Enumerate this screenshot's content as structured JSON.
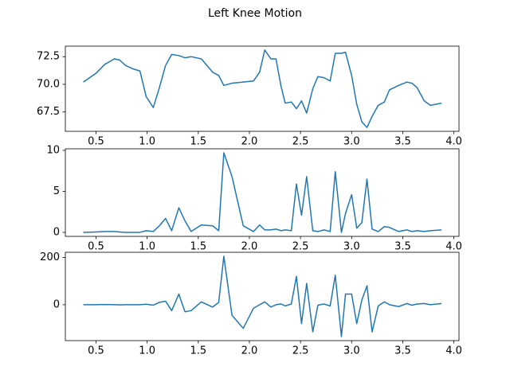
{
  "title": "Left Knee Motion",
  "chart_data": [
    {
      "type": "line",
      "color": "#1f77b4",
      "x": [
        0.376,
        0.5,
        0.585,
        0.68,
        0.73,
        0.79,
        0.86,
        0.93,
        0.99,
        1.06,
        1.12,
        1.18,
        1.24,
        1.31,
        1.37,
        1.43,
        1.53,
        1.64,
        1.7,
        1.75,
        1.83,
        1.94,
        2.04,
        2.1,
        2.15,
        2.21,
        2.26,
        2.31,
        2.35,
        2.41,
        2.46,
        2.51,
        2.56,
        2.62,
        2.67,
        2.73,
        2.79,
        2.84,
        2.9,
        2.94,
        3.0,
        3.05,
        3.1,
        3.15,
        3.2,
        3.26,
        3.32,
        3.37,
        3.46,
        3.54,
        3.59,
        3.64,
        3.71,
        3.77,
        3.88
      ],
      "values": [
        70.2,
        71.0,
        71.8,
        72.3,
        72.2,
        71.7,
        71.4,
        71.2,
        68.9,
        67.9,
        69.7,
        71.7,
        72.7,
        72.6,
        72.4,
        72.5,
        72.3,
        71.1,
        70.8,
        69.9,
        70.1,
        70.2,
        70.3,
        71.1,
        73.1,
        72.3,
        72.3,
        69.8,
        68.3,
        68.4,
        67.8,
        68.5,
        67.4,
        69.6,
        70.7,
        70.6,
        70.3,
        72.8,
        72.8,
        72.9,
        70.8,
        68.2,
        66.6,
        66.1,
        67.1,
        68.1,
        68.4,
        69.5,
        69.9,
        70.2,
        70.1,
        69.7,
        68.5,
        68.1,
        68.3
      ],
      "xlim": [
        0.2,
        4.05
      ],
      "xticks": [
        {
          "value": 0.5,
          "label": "0.5"
        },
        {
          "value": 1.0,
          "label": "1.0"
        },
        {
          "value": 1.5,
          "label": "1.5"
        },
        {
          "value": 2.0,
          "label": "2.0"
        },
        {
          "value": 2.5,
          "label": "2.5"
        },
        {
          "value": 3.0,
          "label": "3.0"
        },
        {
          "value": 3.5,
          "label": "3.5"
        },
        {
          "value": 4.0,
          "label": "4.0"
        }
      ],
      "ylim": [
        65.75,
        73.45
      ],
      "yticks": [
        67.5,
        {
          "value": 70,
          "label": "70.0"
        },
        72.5
      ]
    },
    {
      "type": "line",
      "color": "#1f77b4",
      "x": [
        0.376,
        0.5,
        0.585,
        0.68,
        0.73,
        0.79,
        0.86,
        0.93,
        0.99,
        1.06,
        1.12,
        1.18,
        1.24,
        1.31,
        1.37,
        1.43,
        1.53,
        1.64,
        1.7,
        1.75,
        1.83,
        1.94,
        2.04,
        2.1,
        2.15,
        2.21,
        2.26,
        2.31,
        2.35,
        2.41,
        2.46,
        2.51,
        2.56,
        2.62,
        2.67,
        2.73,
        2.79,
        2.84,
        2.9,
        2.94,
        3.0,
        3.05,
        3.1,
        3.15,
        3.2,
        3.26,
        3.32,
        3.37,
        3.46,
        3.54,
        3.59,
        3.64,
        3.71,
        3.77,
        3.88
      ],
      "values": [
        0.0,
        0.05,
        0.1,
        0.1,
        0.05,
        0.0,
        0.0,
        0.0,
        0.2,
        0.1,
        0.8,
        1.7,
        0.2,
        3.0,
        1.4,
        0.1,
        0.9,
        0.8,
        0.2,
        9.7,
        6.8,
        0.8,
        0.1,
        0.9,
        0.3,
        0.3,
        0.4,
        0.2,
        0.3,
        0.2,
        5.9,
        2.1,
        6.8,
        0.2,
        0.1,
        0.3,
        0.1,
        7.4,
        0.0,
        2.3,
        4.6,
        0.5,
        1.2,
        6.5,
        0.4,
        0.1,
        0.7,
        0.6,
        0.1,
        0.3,
        0.1,
        0.2,
        0.1,
        0.2,
        0.3
      ],
      "xlim": [
        0.2,
        4.05
      ],
      "xticks": [
        {
          "value": 0.5,
          "label": "0.5"
        },
        {
          "value": 1.0,
          "label": "1.0"
        },
        {
          "value": 1.5,
          "label": "1.5"
        },
        {
          "value": 2.0,
          "label": "2.0"
        },
        {
          "value": 2.5,
          "label": "2.5"
        },
        {
          "value": 3.0,
          "label": "3.0"
        },
        {
          "value": 3.5,
          "label": "3.5"
        },
        {
          "value": 4.0,
          "label": "4.0"
        }
      ],
      "ylim": [
        -0.49,
        10.19
      ],
      "yticks": [
        0,
        5,
        10
      ]
    },
    {
      "type": "line",
      "color": "#1f77b4",
      "x": [
        0.376,
        0.5,
        0.585,
        0.68,
        0.73,
        0.79,
        0.86,
        0.93,
        0.99,
        1.06,
        1.12,
        1.18,
        1.24,
        1.31,
        1.37,
        1.43,
        1.53,
        1.64,
        1.7,
        1.75,
        1.83,
        1.94,
        2.04,
        2.1,
        2.15,
        2.21,
        2.26,
        2.31,
        2.35,
        2.41,
        2.46,
        2.51,
        2.56,
        2.62,
        2.67,
        2.73,
        2.79,
        2.84,
        2.9,
        2.94,
        3.0,
        3.05,
        3.1,
        3.15,
        3.2,
        3.26,
        3.32,
        3.37,
        3.46,
        3.54,
        3.59,
        3.64,
        3.71,
        3.77,
        3.88
      ],
      "values": [
        0,
        0,
        1,
        0,
        -1,
        0,
        0,
        0,
        2,
        -2,
        10,
        15,
        -25,
        45,
        -30,
        -25,
        12,
        -10,
        10,
        205,
        -45,
        -100,
        -15,
        0,
        12,
        -10,
        0,
        3,
        -5,
        3,
        120,
        -80,
        90,
        -115,
        -2,
        3,
        -5,
        125,
        -135,
        45,
        45,
        -80,
        20,
        80,
        -115,
        -5,
        12,
        0,
        -8,
        5,
        -2,
        3,
        5,
        0,
        5
      ],
      "xlim": [
        0.2,
        4.05
      ],
      "xticks": [
        {
          "value": 0.5,
          "label": "0.5"
        },
        {
          "value": 1.0,
          "label": "1.0"
        },
        {
          "value": 1.5,
          "label": "1.5"
        },
        {
          "value": 2.0,
          "label": "2.0"
        },
        {
          "value": 2.5,
          "label": "2.5"
        },
        {
          "value": 3.0,
          "label": "3.0"
        },
        {
          "value": 3.5,
          "label": "3.5"
        },
        {
          "value": 4.0,
          "label": "4.0"
        }
      ],
      "ylim": [
        -152,
        222
      ],
      "yticks": [
        0,
        200
      ]
    }
  ]
}
